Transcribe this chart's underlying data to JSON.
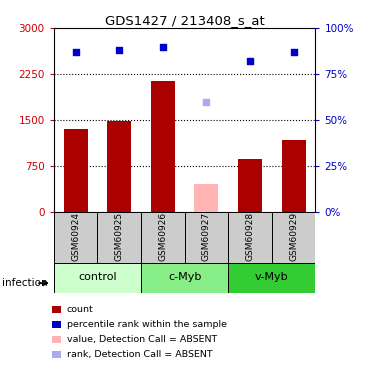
{
  "title": "GDS1427 / 213408_s_at",
  "samples": [
    "GSM60924",
    "GSM60925",
    "GSM60926",
    "GSM60927",
    "GSM60928",
    "GSM60929"
  ],
  "bar_values": [
    1350,
    1480,
    2130,
    0,
    870,
    1170
  ],
  "absent_value": 450,
  "absent_sample_idx": 3,
  "bar_color_present": "#aa0000",
  "bar_color_absent": "#ffb3b3",
  "percentile_ranks": [
    87,
    88,
    90,
    60,
    82,
    87
  ],
  "absent_rank_idx": 3,
  "ylim_left": [
    0,
    3000
  ],
  "ylim_right": [
    0,
    100
  ],
  "yticks_left": [
    0,
    750,
    1500,
    2250,
    3000
  ],
  "yticks_right": [
    0,
    25,
    50,
    75,
    100
  ],
  "ytick_labels_left": [
    "0",
    "750",
    "1500",
    "2250",
    "3000"
  ],
  "ytick_labels_right": [
    "0%",
    "25%",
    "50%",
    "75%",
    "100%"
  ],
  "groups": [
    {
      "label": "control",
      "samples": [
        0,
        1
      ],
      "color": "#ccffcc"
    },
    {
      "label": "c-Myb",
      "samples": [
        2,
        3
      ],
      "color": "#88ee88"
    },
    {
      "label": "v-Myb",
      "samples": [
        4,
        5
      ],
      "color": "#33cc33"
    }
  ],
  "factor_label": "infection",
  "left_tick_color": "#cc0000",
  "right_tick_color": "#0000cc",
  "blue_square_color": "#0000cc",
  "light_blue_color": "#aaaaee",
  "sample_area_color": "#cccccc",
  "legend_items": [
    {
      "color": "#aa0000",
      "label": "count"
    },
    {
      "color": "#0000cc",
      "label": "percentile rank within the sample"
    },
    {
      "color": "#ffb3b3",
      "label": "value, Detection Call = ABSENT"
    },
    {
      "color": "#aaaaee",
      "label": "rank, Detection Call = ABSENT"
    }
  ]
}
